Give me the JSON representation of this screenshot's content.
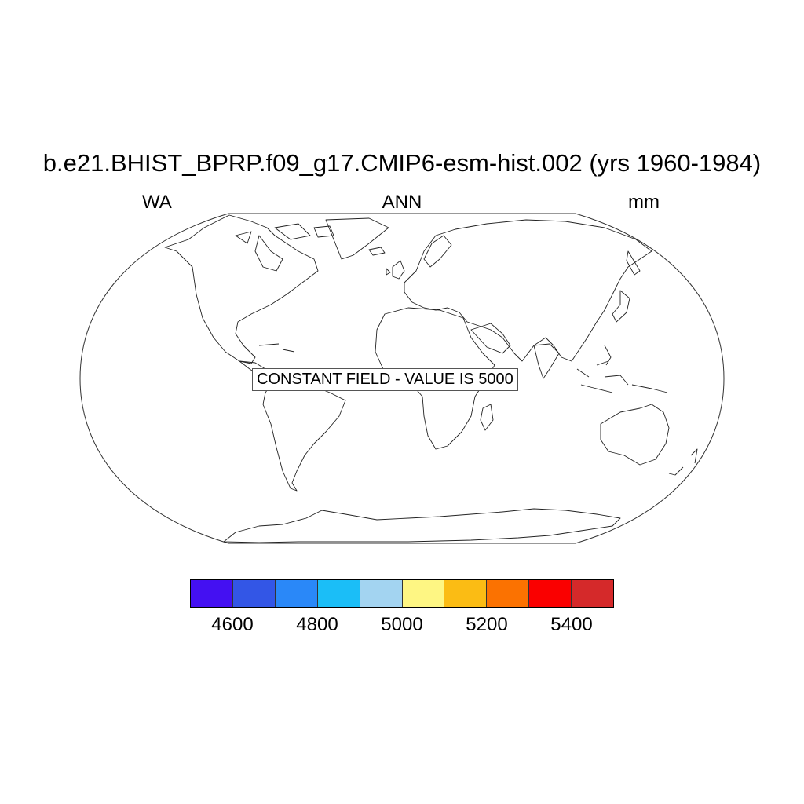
{
  "title": "b.e21.BHIST_BPRP.f09_g17.CMIP6-esm-hist.002 (yrs 1960-1984)",
  "left_string": "WA",
  "center_string": "ANN",
  "right_string": "mm",
  "map": {
    "projection": "robinson",
    "coastlines": true,
    "annotation": "CONSTANT FIELD - VALUE IS 5000"
  },
  "colorbar": {
    "colors": [
      "#4410f2",
      "#3356e6",
      "#2a88f8",
      "#1bbef7",
      "#a3d4f1",
      "#fef683",
      "#fbbc14",
      "#fb7201",
      "#fa0000",
      "#d5292a"
    ],
    "labels": [
      "4600",
      "4800",
      "5000",
      "5200",
      "5400"
    ]
  }
}
